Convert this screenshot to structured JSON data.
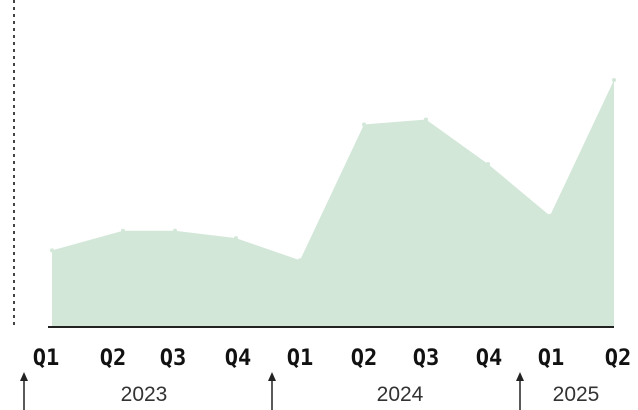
{
  "chart_data": {
    "type": "area",
    "title": "",
    "xlabel": "",
    "ylabel": "",
    "categories": [
      "Q1",
      "Q2",
      "Q3",
      "Q4",
      "Q1",
      "Q2",
      "Q3",
      "Q4",
      "Q1",
      "Q2"
    ],
    "years": [
      {
        "label": "2023",
        "start": 0,
        "span": 4
      },
      {
        "label": "2024",
        "start": 4,
        "span": 4
      },
      {
        "label": "2025",
        "start": 8,
        "span": 2
      }
    ],
    "values": [
      31,
      39,
      39,
      36,
      27,
      82,
      84,
      66,
      45,
      100
    ],
    "ylim": [
      0,
      100
    ],
    "grid": false,
    "legend": "none",
    "colors": {
      "area": "#d3e7d9",
      "axis": "#222222",
      "dashed_axis": "#444444"
    }
  }
}
